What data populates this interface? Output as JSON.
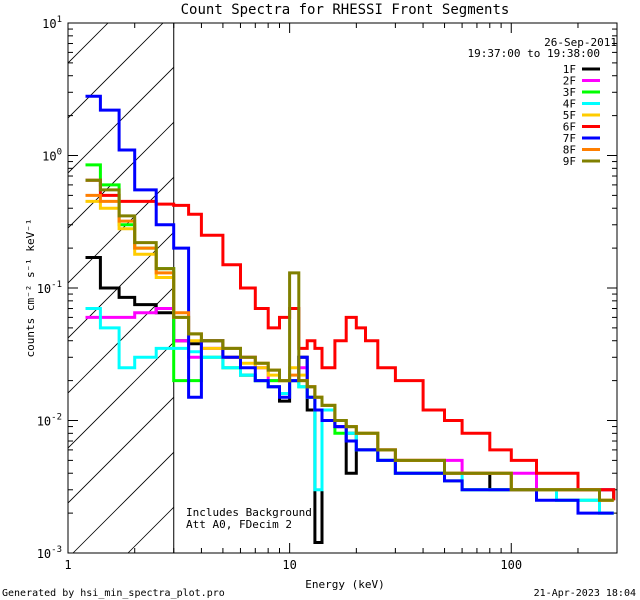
{
  "chart_data": {
    "type": "line",
    "title": "Count Spectra for RHESSI Front Segments",
    "xlabel": "Energy (keV)",
    "ylabel": "counts cm⁻² s⁻¹ keV⁻¹",
    "xscale": "log",
    "yscale": "log",
    "xlim": [
      1,
      300
    ],
    "ylim": [
      0.001,
      10
    ],
    "x_tick_labels": [
      {
        "value": 1,
        "label": "1"
      },
      {
        "value": 10,
        "label": "10"
      },
      {
        "value": 100,
        "label": "100"
      }
    ],
    "y_tick_labels": [
      {
        "value": 10,
        "base": "10",
        "exp": "1"
      },
      {
        "value": 1,
        "base": "10",
        "exp": "0"
      },
      {
        "value": 0.1,
        "base": "10",
        "exp": "-1"
      },
      {
        "value": 0.01,
        "base": "10",
        "exp": "-2"
      },
      {
        "value": 0.001,
        "base": "10",
        "exp": "-3"
      }
    ],
    "info_lines": [
      "26-Sep-2011",
      "19:37:00 to 19:38:00"
    ],
    "excluded_region_xmax": 3,
    "annotations": [
      "Includes Background",
      "Att A0, FDecim 2"
    ],
    "legend_placement": "top-right",
    "series": [
      {
        "name": "1F",
        "color": "#000000",
        "base": 0.17,
        "slope": -1.3,
        "peak": 0.0
      },
      {
        "name": "2F",
        "color": "#ff00ff",
        "base": 0.06,
        "slope": -1.3,
        "peak": 0.0
      },
      {
        "name": "3F",
        "color": "#00ff00",
        "base": 0.85,
        "slope": -1.3,
        "peak": 0.0
      },
      {
        "name": "4F",
        "color": "#00ffff",
        "base": 0.07,
        "slope": -1.3,
        "peak": 0.0
      },
      {
        "name": "5F",
        "color": "#ffcc00",
        "base": 0.45,
        "slope": -1.3,
        "peak": 0.0
      },
      {
        "name": "6F",
        "color": "#ff0000",
        "base": 0.65,
        "slope": -1.3,
        "peak": 0.0
      },
      {
        "name": "7F",
        "color": "#0000ff",
        "base": 2.8,
        "slope": -1.3,
        "peak": 0.0
      },
      {
        "name": "8F",
        "color": "#ff7f00",
        "base": 0.5,
        "slope": -1.3,
        "peak": 0.0
      },
      {
        "name": "9F",
        "color": "#808000",
        "base": 0.65,
        "slope": -1.3,
        "peak": 0.0
      }
    ],
    "series_points": {
      "1F": [
        [
          1.2,
          0.17
        ],
        [
          1.4,
          0.1
        ],
        [
          1.7,
          0.085
        ],
        [
          2,
          0.075
        ],
        [
          2.5,
          0.065
        ],
        [
          3,
          0.04
        ],
        [
          3.5,
          0.038
        ],
        [
          4,
          0.04
        ],
        [
          5,
          0.03
        ],
        [
          6,
          0.022
        ],
        [
          7,
          0.02
        ],
        [
          8,
          0.018
        ],
        [
          9,
          0.014
        ],
        [
          10,
          0.02
        ],
        [
          11,
          0.03
        ],
        [
          12,
          0.012
        ],
        [
          13,
          0.0012
        ],
        [
          14,
          0.01
        ],
        [
          16,
          0.009
        ],
        [
          18,
          0.004
        ],
        [
          20,
          0.006
        ],
        [
          25,
          0.005
        ],
        [
          30,
          0.004
        ],
        [
          40,
          0.004
        ],
        [
          50,
          0.004
        ],
        [
          60,
          0.004
        ],
        [
          80,
          0.003
        ],
        [
          100,
          0.003
        ],
        [
          130,
          0.003
        ],
        [
          160,
          0.003
        ],
        [
          200,
          0.003
        ],
        [
          250,
          0.003
        ],
        [
          290,
          0.0025
        ]
      ],
      "2F": [
        [
          1.2,
          0.06
        ],
        [
          1.6,
          0.06
        ],
        [
          2,
          0.065
        ],
        [
          2.5,
          0.07
        ],
        [
          3,
          0.04
        ],
        [
          3.5,
          0.03
        ],
        [
          4,
          0.035
        ],
        [
          5,
          0.03
        ],
        [
          6,
          0.03
        ],
        [
          7,
          0.025
        ],
        [
          8,
          0.02
        ],
        [
          9,
          0.02
        ],
        [
          10,
          0.02
        ],
        [
          11,
          0.025
        ],
        [
          12,
          0.018
        ],
        [
          13,
          0.012
        ],
        [
          14,
          0.012
        ],
        [
          16,
          0.009
        ],
        [
          18,
          0.008
        ],
        [
          20,
          0.006
        ],
        [
          25,
          0.006
        ],
        [
          30,
          0.005
        ],
        [
          40,
          0.005
        ],
        [
          50,
          0.005
        ],
        [
          60,
          0.004
        ],
        [
          80,
          0.004
        ],
        [
          100,
          0.004
        ],
        [
          130,
          0.003
        ],
        [
          160,
          0.003
        ],
        [
          200,
          0.003
        ],
        [
          250,
          0.003
        ],
        [
          290,
          0.003
        ]
      ],
      "3F": [
        [
          1.2,
          0.85
        ],
        [
          1.4,
          0.6
        ],
        [
          1.7,
          0.3
        ],
        [
          2,
          0.2
        ],
        [
          2.5,
          0.14
        ],
        [
          3,
          0.02
        ],
        [
          3.5,
          0.02
        ],
        [
          4,
          0.03
        ],
        [
          5,
          0.025
        ],
        [
          6,
          0.022
        ],
        [
          7,
          0.02
        ],
        [
          8,
          0.02
        ],
        [
          9,
          0.02
        ],
        [
          10,
          0.02
        ],
        [
          11,
          0.018
        ],
        [
          12,
          0.015
        ],
        [
          13,
          0.012
        ],
        [
          14,
          0.01
        ],
        [
          16,
          0.008
        ],
        [
          18,
          0.008
        ],
        [
          20,
          0.006
        ],
        [
          25,
          0.005
        ],
        [
          30,
          0.004
        ],
        [
          40,
          0.004
        ],
        [
          50,
          0.0035
        ],
        [
          60,
          0.003
        ],
        [
          80,
          0.003
        ],
        [
          100,
          0.003
        ],
        [
          130,
          0.003
        ],
        [
          160,
          0.0025
        ],
        [
          200,
          0.0025
        ],
        [
          250,
          0.002
        ],
        [
          290,
          0.002
        ]
      ],
      "4F": [
        [
          1.2,
          0.07
        ],
        [
          1.4,
          0.05
        ],
        [
          1.7,
          0.025
        ],
        [
          2,
          0.03
        ],
        [
          2.5,
          0.035
        ],
        [
          3,
          0.035
        ],
        [
          3.5,
          0.033
        ],
        [
          4,
          0.03
        ],
        [
          5,
          0.025
        ],
        [
          6,
          0.022
        ],
        [
          7,
          0.02
        ],
        [
          8,
          0.018
        ],
        [
          9,
          0.016
        ],
        [
          10,
          0.02
        ],
        [
          11,
          0.018
        ],
        [
          12,
          0.015
        ],
        [
          13,
          0.003
        ],
        [
          14,
          0.012
        ],
        [
          16,
          0.01
        ],
        [
          18,
          0.008
        ],
        [
          20,
          0.006
        ],
        [
          25,
          0.005
        ],
        [
          30,
          0.004
        ],
        [
          40,
          0.004
        ],
        [
          50,
          0.004
        ],
        [
          60,
          0.003
        ],
        [
          80,
          0.003
        ],
        [
          100,
          0.003
        ],
        [
          130,
          0.003
        ],
        [
          160,
          0.0025
        ],
        [
          200,
          0.0025
        ],
        [
          250,
          0.002
        ],
        [
          290,
          0.002
        ]
      ],
      "5F": [
        [
          1.2,
          0.45
        ],
        [
          1.4,
          0.4
        ],
        [
          1.7,
          0.28
        ],
        [
          2,
          0.18
        ],
        [
          2.5,
          0.12
        ],
        [
          3,
          0.06
        ],
        [
          3.5,
          0.04
        ],
        [
          4,
          0.035
        ],
        [
          5,
          0.03
        ],
        [
          6,
          0.027
        ],
        [
          7,
          0.025
        ],
        [
          8,
          0.022
        ],
        [
          9,
          0.02
        ],
        [
          10,
          0.025
        ],
        [
          11,
          0.022
        ],
        [
          12,
          0.018
        ],
        [
          13,
          0.015
        ],
        [
          14,
          0.013
        ],
        [
          16,
          0.01
        ],
        [
          18,
          0.009
        ],
        [
          20,
          0.008
        ],
        [
          25,
          0.006
        ],
        [
          30,
          0.005
        ],
        [
          40,
          0.005
        ],
        [
          50,
          0.004
        ],
        [
          60,
          0.004
        ],
        [
          80,
          0.004
        ],
        [
          100,
          0.003
        ],
        [
          130,
          0.003
        ],
        [
          160,
          0.003
        ],
        [
          200,
          0.003
        ],
        [
          250,
          0.0025
        ],
        [
          290,
          0.0025
        ]
      ],
      "6F": [
        [
          1.2,
          0.65
        ],
        [
          1.4,
          0.5
        ],
        [
          1.7,
          0.45
        ],
        [
          2,
          0.45
        ],
        [
          2.5,
          0.43
        ],
        [
          3,
          0.42
        ],
        [
          3.5,
          0.36
        ],
        [
          4,
          0.25
        ],
        [
          5,
          0.15
        ],
        [
          6,
          0.1
        ],
        [
          7,
          0.07
        ],
        [
          8,
          0.05
        ],
        [
          9,
          0.06
        ],
        [
          10,
          0.07
        ],
        [
          11,
          0.035
        ],
        [
          12,
          0.04
        ],
        [
          13,
          0.035
        ],
        [
          14,
          0.025
        ],
        [
          16,
          0.04
        ],
        [
          18,
          0.06
        ],
        [
          20,
          0.05
        ],
        [
          22,
          0.04
        ],
        [
          25,
          0.025
        ],
        [
          30,
          0.02
        ],
        [
          40,
          0.012
        ],
        [
          50,
          0.01
        ],
        [
          60,
          0.008
        ],
        [
          80,
          0.006
        ],
        [
          100,
          0.005
        ],
        [
          130,
          0.004
        ],
        [
          160,
          0.004
        ],
        [
          200,
          0.003
        ],
        [
          250,
          0.003
        ],
        [
          290,
          0.0025
        ]
      ],
      "7F": [
        [
          1.2,
          2.8
        ],
        [
          1.4,
          2.2
        ],
        [
          1.7,
          1.1
        ],
        [
          2,
          0.55
        ],
        [
          2.5,
          0.3
        ],
        [
          3,
          0.2
        ],
        [
          3.5,
          0.015
        ],
        [
          4,
          0.04
        ],
        [
          5,
          0.03
        ],
        [
          6,
          0.025
        ],
        [
          7,
          0.02
        ],
        [
          8,
          0.018
        ],
        [
          9,
          0.015
        ],
        [
          10,
          0.02
        ],
        [
          11,
          0.03
        ],
        [
          12,
          0.015
        ],
        [
          13,
          0.012
        ],
        [
          14,
          0.01
        ],
        [
          16,
          0.009
        ],
        [
          18,
          0.007
        ],
        [
          20,
          0.006
        ],
        [
          25,
          0.005
        ],
        [
          30,
          0.004
        ],
        [
          40,
          0.004
        ],
        [
          50,
          0.0035
        ],
        [
          60,
          0.003
        ],
        [
          80,
          0.003
        ],
        [
          100,
          0.003
        ],
        [
          130,
          0.0025
        ],
        [
          160,
          0.0025
        ],
        [
          200,
          0.002
        ],
        [
          250,
          0.002
        ],
        [
          290,
          0.002
        ]
      ],
      "8F": [
        [
          1.2,
          0.5
        ],
        [
          1.4,
          0.45
        ],
        [
          1.7,
          0.32
        ],
        [
          2,
          0.2
        ],
        [
          2.5,
          0.13
        ],
        [
          3,
          0.065
        ],
        [
          3.5,
          0.045
        ],
        [
          4,
          0.04
        ],
        [
          5,
          0.035
        ],
        [
          6,
          0.03
        ],
        [
          7,
          0.027
        ],
        [
          8,
          0.024
        ],
        [
          9,
          0.02
        ],
        [
          10,
          0.022
        ],
        [
          11,
          0.02
        ],
        [
          12,
          0.018
        ],
        [
          13,
          0.015
        ],
        [
          14,
          0.013
        ],
        [
          16,
          0.01
        ],
        [
          18,
          0.009
        ],
        [
          20,
          0.008
        ],
        [
          25,
          0.006
        ],
        [
          30,
          0.005
        ],
        [
          40,
          0.005
        ],
        [
          50,
          0.004
        ],
        [
          60,
          0.004
        ],
        [
          80,
          0.004
        ],
        [
          100,
          0.003
        ],
        [
          130,
          0.003
        ],
        [
          160,
          0.003
        ],
        [
          200,
          0.003
        ],
        [
          250,
          0.0025
        ],
        [
          290,
          0.0025
        ]
      ],
      "9F": [
        [
          1.2,
          0.65
        ],
        [
          1.4,
          0.55
        ],
        [
          1.7,
          0.35
        ],
        [
          2,
          0.22
        ],
        [
          2.5,
          0.14
        ],
        [
          3,
          0.06
        ],
        [
          3.5,
          0.045
        ],
        [
          4,
          0.04
        ],
        [
          5,
          0.035
        ],
        [
          6,
          0.03
        ],
        [
          7,
          0.027
        ],
        [
          8,
          0.024
        ],
        [
          9,
          0.02
        ],
        [
          10,
          0.13
        ],
        [
          11,
          0.02
        ],
        [
          12,
          0.018
        ],
        [
          13,
          0.015
        ],
        [
          14,
          0.013
        ],
        [
          16,
          0.01
        ],
        [
          18,
          0.009
        ],
        [
          20,
          0.008
        ],
        [
          25,
          0.006
        ],
        [
          30,
          0.005
        ],
        [
          40,
          0.005
        ],
        [
          50,
          0.004
        ],
        [
          60,
          0.004
        ],
        [
          80,
          0.004
        ],
        [
          100,
          0.003
        ],
        [
          130,
          0.003
        ],
        [
          160,
          0.003
        ],
        [
          200,
          0.003
        ],
        [
          250,
          0.0025
        ],
        [
          290,
          0.0025
        ]
      ]
    }
  },
  "footer": {
    "generated_by": "Generated by hsi_min_spectra_plot.pro",
    "timestamp": "21-Apr-2023 18:04"
  }
}
